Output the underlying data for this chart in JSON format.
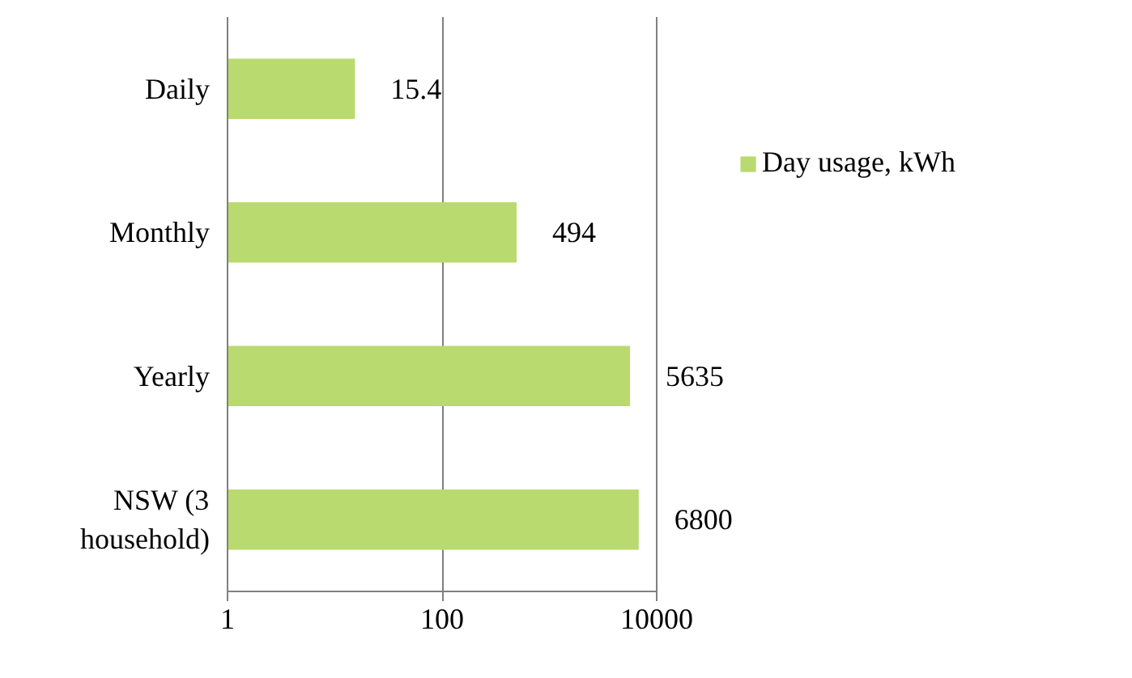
{
  "chart_data": {
    "type": "bar",
    "orientation": "horizontal",
    "categories": [
      "Daily",
      "Monthly",
      "Yearly",
      "NSW (3 household)"
    ],
    "series": [
      {
        "name": "Day usage, kWh",
        "color": "#b9da6e",
        "values": [
          15.4,
          494,
          5635,
          6800
        ]
      }
    ],
    "log": "x",
    "xlim": [
      1,
      10000
    ],
    "xticks": [
      1,
      100,
      10000
    ],
    "grid": "x",
    "legend": "right",
    "data_labels": true
  }
}
